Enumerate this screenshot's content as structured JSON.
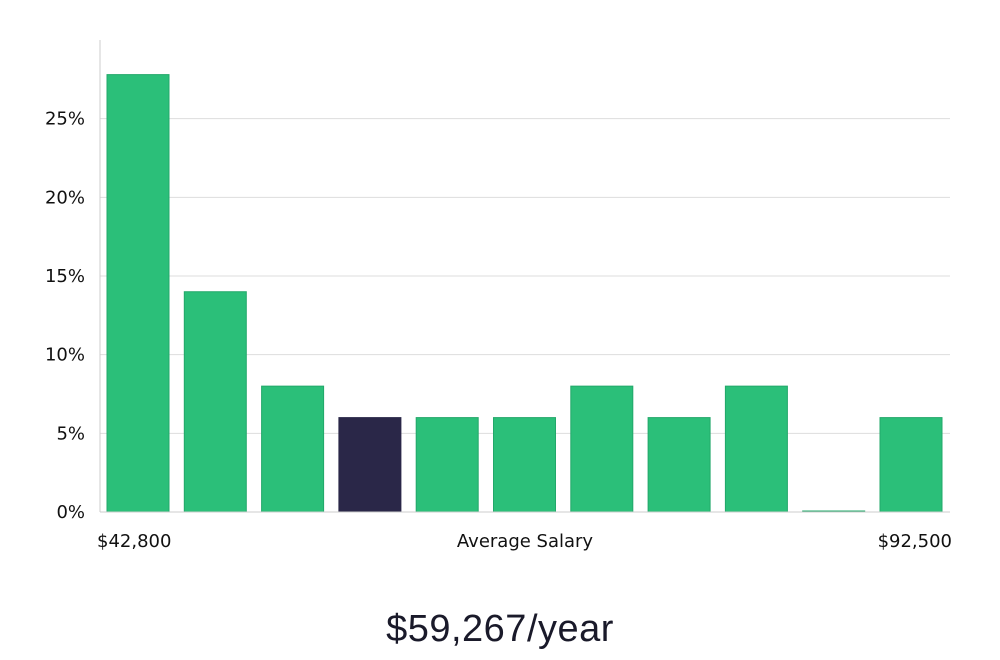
{
  "chart_data": {
    "type": "bar",
    "ylabel": "",
    "xlabel": "Average Salary",
    "ylim": [
      0,
      0.3
    ],
    "yticks": [
      {
        "value": 0,
        "label": "0%"
      },
      {
        "value": 0.05,
        "label": "5%"
      },
      {
        "value": 0.1,
        "label": "10%"
      },
      {
        "value": 0.15,
        "label": "15%"
      },
      {
        "value": 0.2,
        "label": "20%"
      },
      {
        "value": 0.25,
        "label": "25%"
      }
    ],
    "x_min_label": "$42,800",
    "x_max_label": "$92,500",
    "values": [
      0.278,
      0.14,
      0.08,
      0.06,
      0.06,
      0.06,
      0.08,
      0.06,
      0.08,
      0.0,
      0.06
    ],
    "highlight_index": 3,
    "colors": {
      "bar": "#2bbf79",
      "bar_edge": "#22a86a",
      "highlight": "#2a2748",
      "grid": "#dddddd",
      "axis": "#cccccc"
    },
    "grid": true
  },
  "salary_label": "$59,267/year"
}
